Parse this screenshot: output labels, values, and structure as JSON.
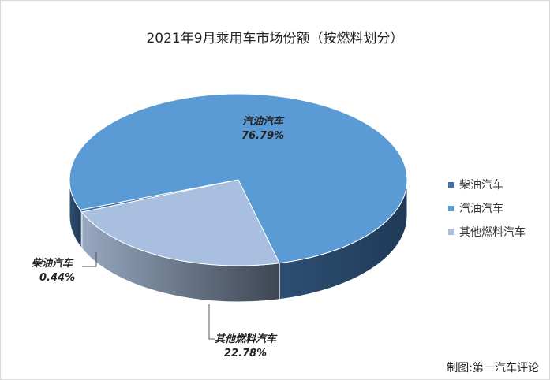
{
  "chart_data": {
    "type": "pie",
    "title": "2021年9月乘用车市场份额（按燃料划分）",
    "slices": [
      {
        "name": "柴油汽车",
        "value": 0.44,
        "label": "0.44%",
        "color": "#3f6ea8"
      },
      {
        "name": "汽油汽车",
        "value": 76.79,
        "label": "76.79%",
        "color": "#5b9bd5"
      },
      {
        "name": "其他燃料汽车",
        "value": 22.78,
        "label": "22.78%",
        "color": "#a8bfdf"
      }
    ],
    "legend_position": "right"
  },
  "credit": "制图:第一汽车评论"
}
